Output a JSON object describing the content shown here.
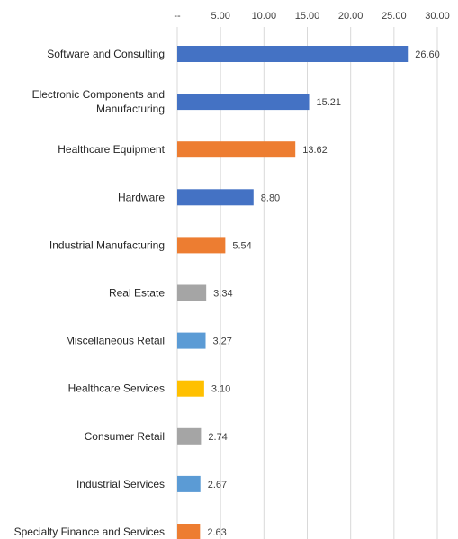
{
  "chart_data": {
    "type": "bar",
    "orientation": "horizontal",
    "grid": true,
    "xlim": [
      0,
      30
    ],
    "x_ticks": [
      {
        "value": 0,
        "label": "--"
      },
      {
        "value": 5,
        "label": "5.00"
      },
      {
        "value": 10,
        "label": "10.00"
      },
      {
        "value": 15,
        "label": "15.00"
      },
      {
        "value": 20,
        "label": "20.00"
      },
      {
        "value": 25,
        "label": "25.00"
      },
      {
        "value": 30,
        "label": "30.00"
      }
    ],
    "x_axis_position": "top",
    "categories": [
      {
        "lines": [
          "Software and Consulting"
        ]
      },
      {
        "lines": [
          "Electronic Components and",
          "Manufacturing"
        ]
      },
      {
        "lines": [
          "Healthcare Equipment"
        ]
      },
      {
        "lines": [
          "Hardware"
        ]
      },
      {
        "lines": [
          "Industrial Manufacturing"
        ]
      },
      {
        "lines": [
          "Real Estate"
        ]
      },
      {
        "lines": [
          "Miscellaneous Retail"
        ]
      },
      {
        "lines": [
          "Healthcare Services"
        ]
      },
      {
        "lines": [
          "Consumer Retail"
        ]
      },
      {
        "lines": [
          "Industrial Services"
        ]
      },
      {
        "lines": [
          "Specialty Finance and Services"
        ]
      }
    ],
    "values": [
      26.6,
      15.21,
      13.62,
      8.8,
      5.54,
      3.34,
      3.27,
      3.1,
      2.74,
      2.67,
      2.63
    ],
    "value_labels": [
      "26.60",
      "15.21",
      "13.62",
      "8.80",
      "5.54",
      "3.34",
      "3.27",
      "3.10",
      "2.74",
      "2.67",
      "2.63"
    ],
    "colors": [
      "#4472c4",
      "#4472c4",
      "#ed7d31",
      "#4472c4",
      "#ed7d31",
      "#a5a5a5",
      "#5b9bd5",
      "#ffc000",
      "#a5a5a5",
      "#5b9bd5",
      "#ed7d31"
    ]
  }
}
